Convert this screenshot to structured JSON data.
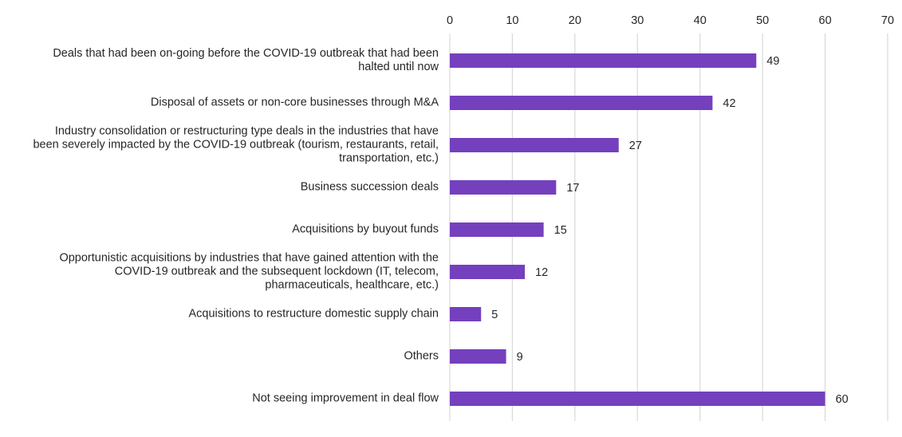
{
  "chart_data": {
    "type": "bar",
    "orientation": "horizontal",
    "categories": [
      "Deals that had been on-going before the COVID-19 outbreak that had been\nhalted until now",
      "Disposal of assets or non-core businesses through M&A",
      "Industry consolidation or restructuring type deals in the industries that have\nbeen severely impacted by the COVID-19 outbreak (tourism, restaurants, retail,\ntransportation, etc.)",
      "Business succession deals",
      "Acquisitions by buyout funds",
      "Opportunistic acquisitions by industries that have gained attention with the\nCOVID-19 outbreak and the subsequent lockdown (IT, telecom,\npharmaceuticals, healthcare, etc.)",
      "Acquisitions to restructure domestic supply chain",
      "Others",
      "Not seeing improvement in deal flow"
    ],
    "values": [
      49,
      42,
      27,
      17,
      15,
      12,
      5,
      9,
      60
    ],
    "xlim": [
      0,
      70
    ],
    "ticks": [
      0,
      10,
      20,
      30,
      40,
      50,
      60,
      70
    ],
    "tick_labels": [
      "0",
      "10",
      "20",
      "30",
      "40",
      "50",
      "60",
      "70"
    ],
    "axis_position": "top",
    "grid": true,
    "legend": "none",
    "title": "",
    "xlabel": "",
    "ylabel": "",
    "colors": {
      "bar": "#7440BE",
      "grid": "#D9D9D9",
      "text": "#262626"
    }
  }
}
